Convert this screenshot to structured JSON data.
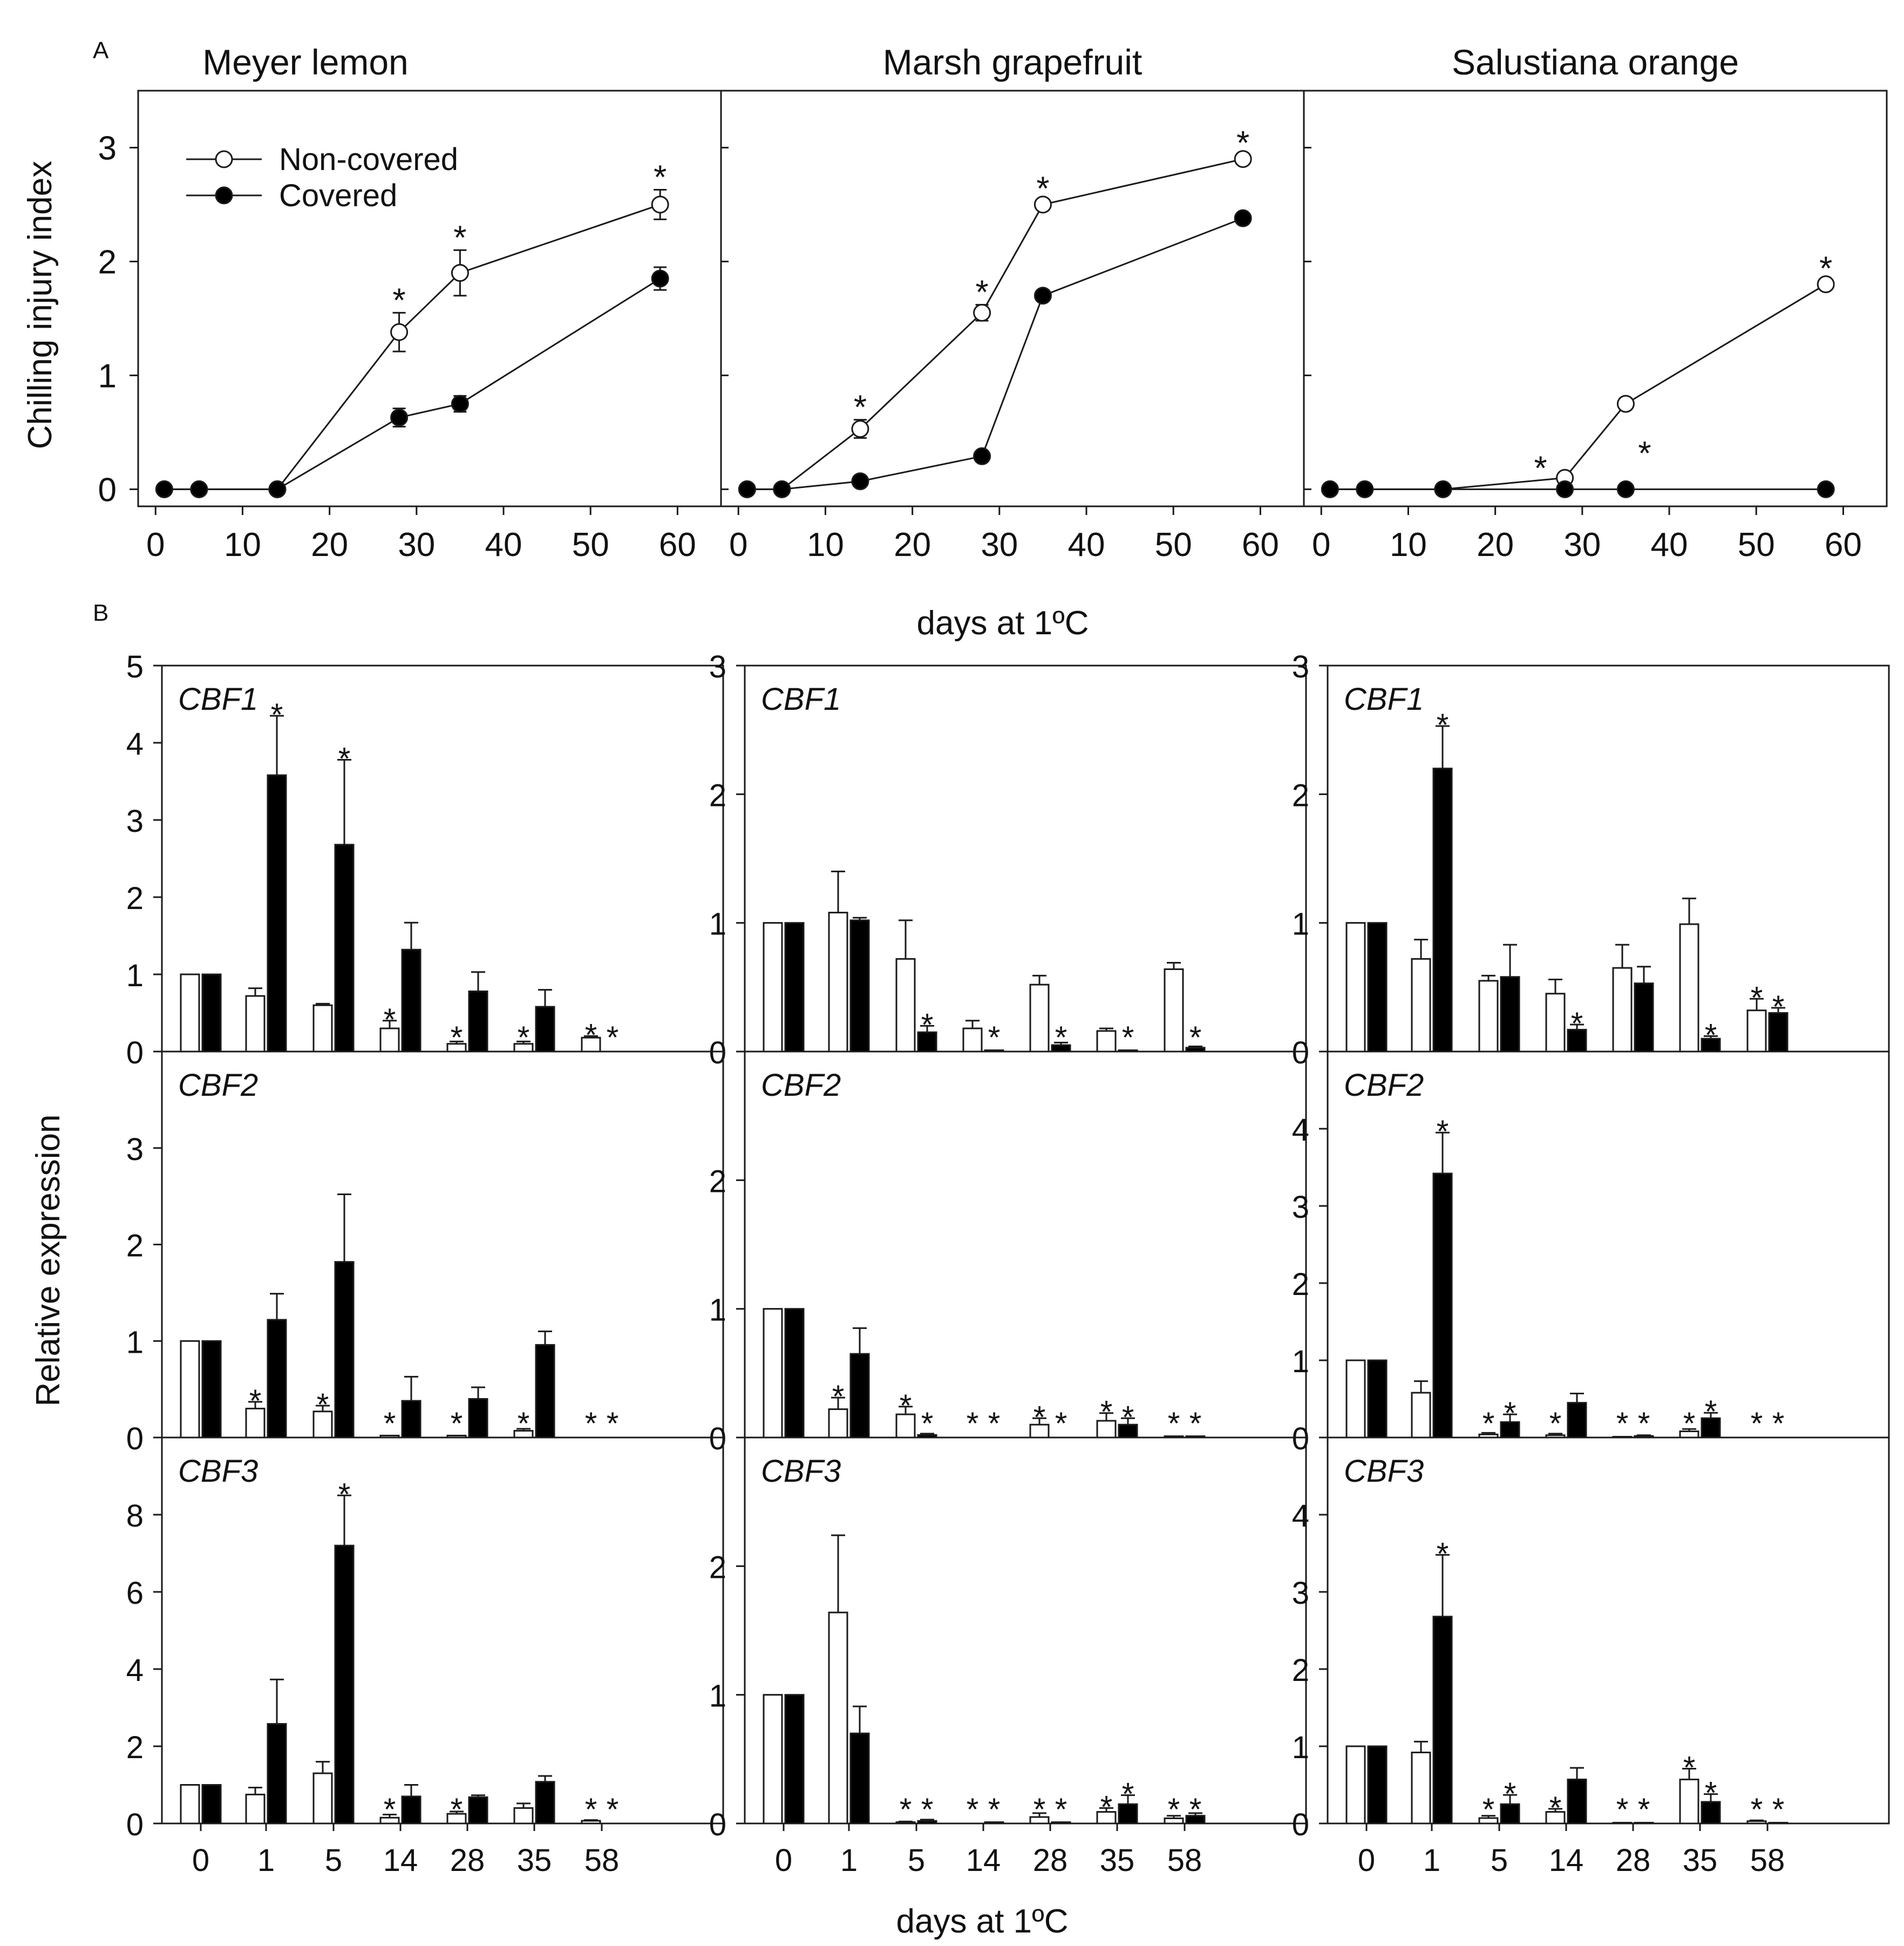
{
  "figure": {
    "panel_a_label": "A",
    "panel_b_label": "B",
    "xlabel_a": "days at 1ºC",
    "xlabel_b": "days at 1ºC",
    "ylabel_a": "Chilling injury index",
    "ylabel_b": "Relative expression",
    "legend": {
      "open": "Non-covered",
      "filled": "Covered"
    },
    "colors": {
      "open": "#ffffff",
      "filled": "#000000",
      "line": "#1a1a1a"
    }
  },
  "chart_data": [
    {
      "type": "line",
      "title": "Meyer lemon",
      "xlabel": "days at 1ºC",
      "ylabel": "Chilling injury index",
      "xlim": [
        -2,
        65
      ],
      "ylim": [
        -0.15,
        3.5
      ],
      "xticks": [
        0,
        10,
        20,
        30,
        40,
        50,
        60
      ],
      "yticks": [
        0,
        1,
        2,
        3
      ],
      "series": [
        {
          "name": "Non-covered",
          "x": [
            1,
            5,
            14,
            28,
            35,
            58
          ],
          "y": [
            0,
            0,
            0,
            1.38,
            1.9,
            2.5
          ],
          "err": [
            0,
            0,
            0,
            0.17,
            0.2,
            0.13
          ],
          "sig": [
            false,
            false,
            false,
            true,
            true,
            true
          ]
        },
        {
          "name": "Covered",
          "x": [
            1,
            5,
            14,
            28,
            35,
            58
          ],
          "y": [
            0,
            0,
            0,
            0.63,
            0.75,
            1.85
          ],
          "err": [
            0,
            0,
            0,
            0.08,
            0.07,
            0.1
          ]
        }
      ]
    },
    {
      "type": "line",
      "title": "Marsh grapefruit",
      "xlabel": "days at 1ºC",
      "ylabel": "Chilling injury index",
      "xlim": [
        -2,
        65
      ],
      "ylim": [
        -0.15,
        3.5
      ],
      "xticks": [
        0,
        10,
        20,
        30,
        40,
        50,
        60
      ],
      "yticks": [
        0,
        1,
        2,
        3
      ],
      "series": [
        {
          "name": "Non-covered",
          "x": [
            1,
            5,
            14,
            28,
            35,
            58
          ],
          "y": [
            0,
            0,
            0.53,
            1.55,
            2.5,
            2.9
          ],
          "err": [
            0,
            0,
            0.08,
            0.07,
            0.03,
            0.03
          ],
          "sig": [
            false,
            false,
            true,
            true,
            true,
            true
          ]
        },
        {
          "name": "Covered",
          "x": [
            1,
            5,
            14,
            28,
            35,
            58
          ],
          "y": [
            0,
            0,
            0.07,
            0.29,
            1.7,
            2.38
          ],
          "err": [
            0,
            0,
            0,
            0,
            0,
            0
          ]
        }
      ]
    },
    {
      "type": "line",
      "title": "Salustiana orange",
      "xlabel": "days at 1ºC",
      "ylabel": "Chilling injury index",
      "xlim": [
        -2,
        65
      ],
      "ylim": [
        -0.15,
        3.5
      ],
      "xticks": [
        0,
        10,
        20,
        30,
        40,
        50,
        60
      ],
      "yticks": [
        0,
        1,
        2,
        3
      ],
      "series": [
        {
          "name": "Non-covered",
          "x": [
            1,
            5,
            14,
            28,
            35,
            58
          ],
          "y": [
            0,
            0,
            0,
            0.1,
            0.75,
            1.8
          ],
          "err": [
            0,
            0,
            0,
            0.03,
            0.05,
            0.03
          ],
          "sig": [
            false,
            false,
            false,
            true,
            true,
            true
          ]
        },
        {
          "name": "Covered",
          "x": [
            1,
            5,
            14,
            28,
            35,
            58
          ],
          "y": [
            0,
            0,
            0,
            0,
            0,
            0
          ],
          "err": [
            0,
            0,
            0,
            0,
            0,
            0
          ]
        }
      ]
    },
    {
      "type": "bar",
      "title": "CBF1",
      "variety": "Meyer lemon",
      "categories": [
        "0",
        "1",
        "5",
        "14",
        "28",
        "35",
        "58"
      ],
      "ylim": [
        0,
        5
      ],
      "yticks": [
        0,
        1,
        2,
        3,
        4,
        5
      ],
      "series": [
        {
          "name": "Non-covered",
          "values": [
            1,
            0.72,
            0.6,
            0.3,
            0.1,
            0.1,
            0.18
          ],
          "err": [
            0,
            0.1,
            0.02,
            0.1,
            0.03,
            0.03,
            0.02
          ],
          "sig": [
            false,
            false,
            false,
            true,
            true,
            true,
            true
          ]
        },
        {
          "name": "Covered",
          "values": [
            1,
            3.58,
            2.68,
            1.32,
            0.78,
            0.58,
            0
          ],
          "err": [
            0,
            0.77,
            1.1,
            0.35,
            0.25,
            0.22,
            0
          ],
          "sig": [
            false,
            true,
            true,
            false,
            false,
            false,
            true
          ]
        }
      ]
    },
    {
      "type": "bar",
      "title": "CBF1",
      "variety": "Marsh grapefruit",
      "categories": [
        "0",
        "1",
        "5",
        "14",
        "28",
        "35",
        "58"
      ],
      "ylim": [
        0,
        3
      ],
      "yticks": [
        0,
        1,
        2,
        3
      ],
      "series": [
        {
          "name": "Non-covered",
          "values": [
            1,
            1.08,
            0.72,
            0.18,
            0.52,
            0.16,
            0.64
          ],
          "err": [
            0,
            0.32,
            0.3,
            0.06,
            0.07,
            0.02,
            0.05
          ],
          "sig": [
            false,
            false,
            false,
            false,
            false,
            false,
            false
          ]
        },
        {
          "name": "Covered",
          "values": [
            1,
            1.02,
            0.15,
            0.01,
            0.05,
            0.01,
            0.03
          ],
          "err": [
            0,
            0.02,
            0.05,
            0,
            0.02,
            0,
            0.01
          ],
          "sig": [
            false,
            false,
            true,
            true,
            true,
            true,
            true
          ]
        }
      ]
    },
    {
      "type": "bar",
      "title": "CBF1",
      "variety": "Salustiana orange",
      "categories": [
        "0",
        "1",
        "5",
        "14",
        "28",
        "35",
        "58"
      ],
      "ylim": [
        0,
        3
      ],
      "yticks": [
        0,
        1,
        2,
        3
      ],
      "series": [
        {
          "name": "Non-covered",
          "values": [
            1,
            0.72,
            0.55,
            0.45,
            0.65,
            0.99,
            0.32
          ],
          "err": [
            0,
            0.15,
            0.04,
            0.11,
            0.18,
            0.2,
            0.09
          ],
          "sig": [
            false,
            false,
            false,
            false,
            false,
            false,
            true
          ]
        },
        {
          "name": "Covered",
          "values": [
            1,
            2.2,
            0.58,
            0.17,
            0.53,
            0.1,
            0.3
          ],
          "err": [
            0,
            0.33,
            0.25,
            0.04,
            0.13,
            0.02,
            0.04
          ],
          "sig": [
            false,
            true,
            false,
            true,
            false,
            true,
            true
          ]
        }
      ]
    },
    {
      "type": "bar",
      "title": "CBF2",
      "variety": "Meyer lemon",
      "categories": [
        "0",
        "1",
        "5",
        "14",
        "28",
        "35",
        "58"
      ],
      "ylim": [
        0,
        4
      ],
      "yticks": [
        0,
        1,
        2,
        3
      ],
      "series": [
        {
          "name": "Non-covered",
          "values": [
            1,
            0.3,
            0.27,
            0.02,
            0.02,
            0.07,
            0
          ],
          "err": [
            0,
            0.07,
            0.06,
            0,
            0,
            0.02,
            0
          ],
          "sig": [
            false,
            true,
            true,
            true,
            true,
            true,
            true
          ]
        },
        {
          "name": "Covered",
          "values": [
            1,
            1.22,
            1.82,
            0.38,
            0.4,
            0.96,
            0
          ],
          "err": [
            0,
            0.27,
            0.7,
            0.25,
            0.12,
            0.14,
            0
          ],
          "sig": [
            false,
            false,
            false,
            false,
            false,
            false,
            true
          ]
        }
      ]
    },
    {
      "type": "bar",
      "title": "CBF2",
      "variety": "Marsh grapefruit",
      "categories": [
        "0",
        "1",
        "5",
        "14",
        "28",
        "35",
        "58"
      ],
      "ylim": [
        0,
        3
      ],
      "yticks": [
        0,
        1,
        2
      ],
      "series": [
        {
          "name": "Non-covered",
          "values": [
            1,
            0.22,
            0.18,
            0,
            0.1,
            0.13,
            0.01
          ],
          "err": [
            0,
            0.09,
            0.06,
            0,
            0.05,
            0.06,
            0
          ],
          "sig": [
            false,
            true,
            true,
            true,
            true,
            true,
            true
          ]
        },
        {
          "name": "Covered",
          "values": [
            1,
            0.65,
            0.02,
            0,
            0,
            0.1,
            0.01
          ],
          "err": [
            0,
            0.2,
            0.01,
            0,
            0,
            0.05,
            0
          ],
          "sig": [
            false,
            false,
            true,
            true,
            true,
            true,
            true
          ]
        }
      ]
    },
    {
      "type": "bar",
      "title": "CBF2",
      "variety": "Salustiana orange",
      "categories": [
        "0",
        "1",
        "5",
        "14",
        "28",
        "35",
        "58"
      ],
      "ylim": [
        0,
        5
      ],
      "yticks": [
        0,
        1,
        2,
        3,
        4
      ],
      "series": [
        {
          "name": "Non-covered",
          "values": [
            1,
            0.58,
            0.04,
            0.03,
            0.01,
            0.08,
            0
          ],
          "err": [
            0,
            0.15,
            0.02,
            0.02,
            0,
            0.03,
            0
          ],
          "sig": [
            false,
            false,
            true,
            true,
            true,
            true,
            true
          ]
        },
        {
          "name": "Covered",
          "values": [
            1,
            3.42,
            0.2,
            0.45,
            0.02,
            0.25,
            0
          ],
          "err": [
            0,
            0.53,
            0.1,
            0.12,
            0.01,
            0.07,
            0
          ],
          "sig": [
            false,
            true,
            true,
            false,
            true,
            true,
            true
          ]
        }
      ]
    },
    {
      "type": "bar",
      "title": "CBF3",
      "variety": "Meyer lemon",
      "categories": [
        "0",
        "1",
        "5",
        "14",
        "28",
        "35",
        "58"
      ],
      "ylim": [
        0,
        10
      ],
      "yticks": [
        0,
        2,
        4,
        6,
        8
      ],
      "series": [
        {
          "name": "Non-covered",
          "values": [
            1,
            0.75,
            1.3,
            0.15,
            0.25,
            0.4,
            0.07
          ],
          "err": [
            0,
            0.18,
            0.3,
            0.08,
            0.06,
            0.12,
            0.02
          ],
          "sig": [
            false,
            false,
            false,
            true,
            true,
            false,
            true
          ]
        },
        {
          "name": "Covered",
          "values": [
            1,
            2.58,
            7.2,
            0.7,
            0.68,
            1.08,
            0
          ],
          "err": [
            0,
            1.15,
            1.3,
            0.3,
            0.05,
            0.15,
            0
          ],
          "sig": [
            false,
            false,
            true,
            false,
            false,
            false,
            true
          ]
        }
      ]
    },
    {
      "type": "bar",
      "title": "CBF3",
      "variety": "Marsh grapefruit",
      "categories": [
        "0",
        "1",
        "5",
        "14",
        "28",
        "35",
        "58"
      ],
      "ylim": [
        0,
        3
      ],
      "yticks": [
        0,
        1,
        2
      ],
      "series": [
        {
          "name": "Non-covered",
          "values": [
            1,
            1.64,
            0.01,
            0,
            0.05,
            0.09,
            0.04
          ],
          "err": [
            0,
            0.6,
            0.005,
            0,
            0.03,
            0.03,
            0.02
          ],
          "sig": [
            false,
            false,
            true,
            true,
            true,
            true,
            true
          ]
        },
        {
          "name": "Covered",
          "values": [
            1,
            0.7,
            0.02,
            0.01,
            0.01,
            0.15,
            0.06
          ],
          "err": [
            0,
            0.21,
            0.01,
            0,
            0,
            0.07,
            0.02
          ],
          "sig": [
            false,
            false,
            true,
            true,
            true,
            true,
            true
          ]
        }
      ]
    },
    {
      "type": "bar",
      "title": "CBF3",
      "variety": "Salustiana orange",
      "categories": [
        "0",
        "1",
        "5",
        "14",
        "28",
        "35",
        "58"
      ],
      "ylim": [
        0,
        5
      ],
      "yticks": [
        0,
        1,
        2,
        3,
        4
      ],
      "series": [
        {
          "name": "Non-covered",
          "values": [
            1,
            0.92,
            0.07,
            0.15,
            0.01,
            0.57,
            0.03
          ],
          "err": [
            0,
            0.14,
            0.03,
            0.04,
            0,
            0.14,
            0.01
          ],
          "sig": [
            false,
            false,
            true,
            true,
            true,
            true,
            true
          ]
        },
        {
          "name": "Covered",
          "values": [
            1,
            2.68,
            0.25,
            0.57,
            0.01,
            0.28,
            0.01
          ],
          "err": [
            0,
            0.8,
            0.12,
            0.15,
            0,
            0.1,
            0
          ],
          "sig": [
            false,
            true,
            true,
            false,
            true,
            true,
            true
          ]
        }
      ]
    }
  ]
}
